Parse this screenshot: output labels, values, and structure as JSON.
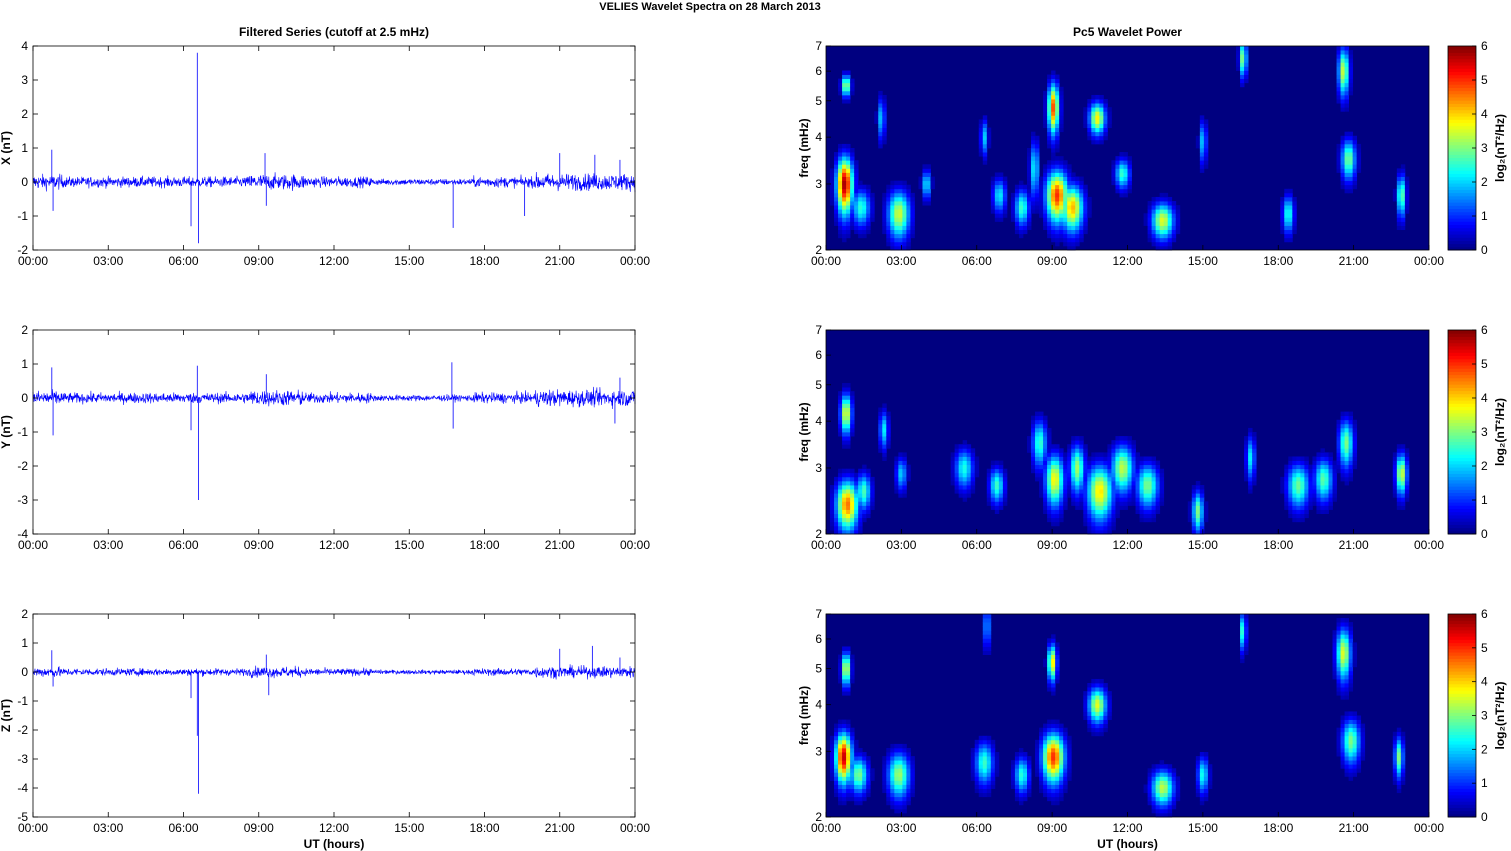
{
  "figure": {
    "suptitle": "VELIES Wavelet Spectra on 28 March     2013",
    "left_title": "Filtered Series (cutoff at 2.5 mHz)",
    "right_title": "Pc5 Wavelet Power",
    "xlabel": "UT (hours)",
    "colorbar_label": "log₂(nT²/Hz)"
  },
  "chart_data": [
    {
      "type": "line",
      "title": "Filtered Series (cutoff at 2.5 mHz)",
      "ylabel": "X (nT)",
      "xlabel": "",
      "x_ticks": [
        "00:00",
        "03:00",
        "06:00",
        "09:00",
        "12:00",
        "15:00",
        "18:00",
        "21:00",
        "00:00"
      ],
      "xlim_hours": [
        0,
        24
      ],
      "ylim": [
        -2,
        4
      ],
      "y_ticks": [
        -2,
        -1,
        0,
        1,
        2,
        3,
        4
      ],
      "color": "#0000ff",
      "baseline_amplitude_nT": 0.15,
      "spikes": [
        {
          "t": 0.75,
          "y": 0.95
        },
        {
          "t": 0.8,
          "y": -0.85
        },
        {
          "t": 6.3,
          "y": -1.3
        },
        {
          "t": 6.55,
          "y": 3.8
        },
        {
          "t": 6.6,
          "y": -1.8
        },
        {
          "t": 9.25,
          "y": 0.85
        },
        {
          "t": 9.3,
          "y": -0.7
        },
        {
          "t": 16.75,
          "y": -1.35
        },
        {
          "t": 19.6,
          "y": -1.0
        },
        {
          "t": 21.0,
          "y": 0.85
        },
        {
          "t": 22.4,
          "y": 0.8
        },
        {
          "t": 23.4,
          "y": 0.65
        }
      ]
    },
    {
      "type": "line",
      "ylabel": "Y (nT)",
      "x_ticks": [
        "00:00",
        "03:00",
        "06:00",
        "09:00",
        "12:00",
        "15:00",
        "18:00",
        "21:00",
        "00:00"
      ],
      "xlim_hours": [
        0,
        24
      ],
      "ylim": [
        -4,
        2
      ],
      "y_ticks": [
        -4,
        -3,
        -2,
        -1,
        0,
        1,
        2
      ],
      "color": "#0000ff",
      "baseline_amplitude_nT": 0.15,
      "spikes": [
        {
          "t": 0.75,
          "y": 0.9
        },
        {
          "t": 0.8,
          "y": -1.1
        },
        {
          "t": 6.3,
          "y": -0.95
        },
        {
          "t": 6.55,
          "y": 0.95
        },
        {
          "t": 6.6,
          "y": -3.0
        },
        {
          "t": 9.3,
          "y": 0.7
        },
        {
          "t": 16.7,
          "y": 1.05
        },
        {
          "t": 16.75,
          "y": -0.9
        },
        {
          "t": 23.4,
          "y": 0.6
        },
        {
          "t": 23.2,
          "y": -0.75
        }
      ]
    },
    {
      "type": "line",
      "ylabel": "Z (nT)",
      "xlabel": "UT (hours)",
      "x_ticks": [
        "00:00",
        "03:00",
        "06:00",
        "09:00",
        "12:00",
        "15:00",
        "18:00",
        "21:00",
        "00:00"
      ],
      "xlim_hours": [
        0,
        24
      ],
      "ylim": [
        -5,
        2
      ],
      "y_ticks": [
        -5,
        -4,
        -3,
        -2,
        -1,
        0,
        1,
        2
      ],
      "color": "#0000ff",
      "baseline_amplitude_nT": 0.12,
      "spikes": [
        {
          "t": 0.75,
          "y": 0.75
        },
        {
          "t": 0.8,
          "y": -0.5
        },
        {
          "t": 6.3,
          "y": -0.9
        },
        {
          "t": 6.55,
          "y": -2.2
        },
        {
          "t": 6.6,
          "y": -4.2
        },
        {
          "t": 9.3,
          "y": 0.6
        },
        {
          "t": 9.4,
          "y": -0.8
        },
        {
          "t": 21.0,
          "y": 0.8
        },
        {
          "t": 22.3,
          "y": 0.9
        },
        {
          "t": 23.4,
          "y": 0.5
        }
      ]
    },
    {
      "type": "heatmap",
      "title": "Pc5 Wavelet Power",
      "ylabel": "freq (mHz)",
      "xlabel": "",
      "x_ticks": [
        "00:00",
        "03:00",
        "06:00",
        "09:00",
        "12:00",
        "15:00",
        "18:00",
        "21:00",
        "00:00"
      ],
      "xlim_hours": [
        0,
        24
      ],
      "ylim_mHz": [
        2,
        7
      ],
      "y_scale": "log",
      "y_ticks": [
        2,
        3,
        4,
        5,
        6,
        7
      ],
      "colorbar": {
        "label": "log₂(nT²/Hz)",
        "range": [
          0,
          6
        ],
        "ticks": [
          0,
          1,
          2,
          3,
          4,
          5,
          6
        ],
        "colormap": "jet"
      },
      "blobs": [
        {
          "t": 0.75,
          "f": 3.0,
          "p": 5.8,
          "wt": 0.22,
          "wf": 0.35
        },
        {
          "t": 0.8,
          "f": 5.5,
          "p": 3.5,
          "wt": 0.12,
          "wf": 0.25
        },
        {
          "t": 1.4,
          "f": 2.6,
          "p": 2.5,
          "wt": 0.25,
          "wf": 0.2
        },
        {
          "t": 2.2,
          "f": 4.5,
          "p": 2.0,
          "wt": 0.1,
          "wf": 0.4
        },
        {
          "t": 2.9,
          "f": 2.5,
          "p": 3.5,
          "wt": 0.3,
          "wf": 0.25
        },
        {
          "t": 4.0,
          "f": 3.0,
          "p": 2.3,
          "wt": 0.12,
          "wf": 0.18
        },
        {
          "t": 6.3,
          "f": 4.0,
          "p": 2.0,
          "wt": 0.1,
          "wf": 0.3
        },
        {
          "t": 6.9,
          "f": 2.8,
          "p": 2.2,
          "wt": 0.18,
          "wf": 0.2
        },
        {
          "t": 7.8,
          "f": 2.6,
          "p": 2.6,
          "wt": 0.2,
          "wf": 0.2
        },
        {
          "t": 8.3,
          "f": 3.3,
          "p": 2.3,
          "wt": 0.12,
          "wf": 0.4
        },
        {
          "t": 9.05,
          "f": 4.8,
          "p": 4.8,
          "wt": 0.15,
          "wf": 0.5
        },
        {
          "t": 9.2,
          "f": 2.8,
          "p": 5.0,
          "wt": 0.3,
          "wf": 0.3
        },
        {
          "t": 9.8,
          "f": 2.6,
          "p": 4.2,
          "wt": 0.3,
          "wf": 0.25
        },
        {
          "t": 10.8,
          "f": 4.5,
          "p": 3.8,
          "wt": 0.22,
          "wf": 0.3
        },
        {
          "t": 11.8,
          "f": 3.2,
          "p": 2.6,
          "wt": 0.2,
          "wf": 0.2
        },
        {
          "t": 13.4,
          "f": 2.4,
          "p": 3.6,
          "wt": 0.3,
          "wf": 0.18
        },
        {
          "t": 15.0,
          "f": 3.9,
          "p": 2.0,
          "wt": 0.1,
          "wf": 0.35
        },
        {
          "t": 16.6,
          "f": 6.5,
          "p": 3.2,
          "wt": 0.1,
          "wf": 0.5
        },
        {
          "t": 18.4,
          "f": 2.5,
          "p": 2.5,
          "wt": 0.15,
          "wf": 0.2
        },
        {
          "t": 20.6,
          "f": 6.0,
          "p": 3.5,
          "wt": 0.15,
          "wf": 0.6
        },
        {
          "t": 20.8,
          "f": 3.5,
          "p": 3.0,
          "wt": 0.2,
          "wf": 0.3
        },
        {
          "t": 22.9,
          "f": 2.8,
          "p": 3.0,
          "wt": 0.12,
          "wf": 0.25
        }
      ]
    },
    {
      "type": "heatmap",
      "ylabel": "freq (mHz)",
      "x_ticks": [
        "00:00",
        "03:00",
        "06:00",
        "09:00",
        "12:00",
        "15:00",
        "18:00",
        "21:00",
        "00:00"
      ],
      "xlim_hours": [
        0,
        24
      ],
      "ylim_mHz": [
        2,
        7
      ],
      "y_scale": "log",
      "y_ticks": [
        2,
        3,
        4,
        5,
        6,
        7
      ],
      "colorbar": {
        "label": "log₂(nT²/Hz)",
        "range": [
          0,
          6
        ],
        "ticks": [
          0,
          1,
          2,
          3,
          4,
          5,
          6
        ],
        "colormap": "jet"
      },
      "blobs": [
        {
          "t": 0.85,
          "f": 2.4,
          "p": 4.6,
          "wt": 0.3,
          "wf": 0.25
        },
        {
          "t": 0.8,
          "f": 4.2,
          "p": 3.8,
          "wt": 0.15,
          "wf": 0.35
        },
        {
          "t": 1.5,
          "f": 2.6,
          "p": 2.7,
          "wt": 0.2,
          "wf": 0.2
        },
        {
          "t": 2.3,
          "f": 3.8,
          "p": 2.2,
          "wt": 0.12,
          "wf": 0.3
        },
        {
          "t": 3.0,
          "f": 2.9,
          "p": 2.0,
          "wt": 0.15,
          "wf": 0.2
        },
        {
          "t": 5.5,
          "f": 3.0,
          "p": 2.4,
          "wt": 0.25,
          "wf": 0.25
        },
        {
          "t": 6.8,
          "f": 2.7,
          "p": 2.6,
          "wt": 0.2,
          "wf": 0.2
        },
        {
          "t": 8.5,
          "f": 3.5,
          "p": 2.6,
          "wt": 0.2,
          "wf": 0.35
        },
        {
          "t": 9.1,
          "f": 2.8,
          "p": 3.8,
          "wt": 0.25,
          "wf": 0.3
        },
        {
          "t": 10.0,
          "f": 3.0,
          "p": 3.2,
          "wt": 0.2,
          "wf": 0.3
        },
        {
          "t": 10.9,
          "f": 2.6,
          "p": 3.9,
          "wt": 0.35,
          "wf": 0.3
        },
        {
          "t": 11.8,
          "f": 3.0,
          "p": 3.4,
          "wt": 0.3,
          "wf": 0.3
        },
        {
          "t": 12.8,
          "f": 2.7,
          "p": 3.0,
          "wt": 0.3,
          "wf": 0.25
        },
        {
          "t": 14.8,
          "f": 2.3,
          "p": 3.0,
          "wt": 0.15,
          "wf": 0.2
        },
        {
          "t": 16.9,
          "f": 3.2,
          "p": 2.2,
          "wt": 0.12,
          "wf": 0.3
        },
        {
          "t": 18.8,
          "f": 2.7,
          "p": 2.9,
          "wt": 0.3,
          "wf": 0.25
        },
        {
          "t": 19.8,
          "f": 2.8,
          "p": 2.8,
          "wt": 0.25,
          "wf": 0.25
        },
        {
          "t": 20.7,
          "f": 3.5,
          "p": 3.0,
          "wt": 0.2,
          "wf": 0.35
        },
        {
          "t": 22.9,
          "f": 2.9,
          "p": 3.6,
          "wt": 0.15,
          "wf": 0.25
        }
      ]
    },
    {
      "type": "heatmap",
      "ylabel": "freq (mHz)",
      "xlabel": "UT (hours)",
      "x_ticks": [
        "00:00",
        "03:00",
        "06:00",
        "09:00",
        "12:00",
        "15:00",
        "18:00",
        "21:00",
        "00:00"
      ],
      "xlim_hours": [
        0,
        24
      ],
      "ylim_mHz": [
        2,
        7
      ],
      "y_scale": "log",
      "y_ticks": [
        2,
        3,
        4,
        5,
        6,
        7
      ],
      "colorbar": {
        "label": "log₂(nT²/Hz)",
        "range": [
          0,
          6
        ],
        "ticks": [
          0,
          1,
          2,
          3,
          4,
          5,
          6
        ],
        "colormap": "jet"
      },
      "blobs": [
        {
          "t": 0.7,
          "f": 2.9,
          "p": 5.6,
          "wt": 0.22,
          "wf": 0.3
        },
        {
          "t": 0.8,
          "f": 5.0,
          "p": 3.8,
          "wt": 0.12,
          "wf": 0.35
        },
        {
          "t": 1.3,
          "f": 2.6,
          "p": 3.0,
          "wt": 0.25,
          "wf": 0.2
        },
        {
          "t": 2.9,
          "f": 2.6,
          "p": 3.2,
          "wt": 0.3,
          "wf": 0.25
        },
        {
          "t": 6.4,
          "f": 6.5,
          "p": 3.2,
          "wt": 0.06,
          "wf": 0.6
        },
        {
          "t": 6.3,
          "f": 2.8,
          "p": 2.6,
          "wt": 0.25,
          "wf": 0.25
        },
        {
          "t": 7.8,
          "f": 2.6,
          "p": 2.5,
          "wt": 0.2,
          "wf": 0.2
        },
        {
          "t": 9.05,
          "f": 2.9,
          "p": 5.0,
          "wt": 0.3,
          "wf": 0.3
        },
        {
          "t": 9.0,
          "f": 5.2,
          "p": 4.0,
          "wt": 0.12,
          "wf": 0.4
        },
        {
          "t": 10.8,
          "f": 4.0,
          "p": 3.6,
          "wt": 0.25,
          "wf": 0.3
        },
        {
          "t": 13.4,
          "f": 2.4,
          "p": 3.4,
          "wt": 0.3,
          "wf": 0.18
        },
        {
          "t": 15.0,
          "f": 2.6,
          "p": 2.4,
          "wt": 0.15,
          "wf": 0.2
        },
        {
          "t": 16.6,
          "f": 6.3,
          "p": 2.8,
          "wt": 0.08,
          "wf": 0.5
        },
        {
          "t": 20.6,
          "f": 5.5,
          "p": 3.6,
          "wt": 0.2,
          "wf": 0.6
        },
        {
          "t": 20.9,
          "f": 3.2,
          "p": 3.0,
          "wt": 0.25,
          "wf": 0.3
        },
        {
          "t": 22.8,
          "f": 2.9,
          "p": 3.0,
          "wt": 0.12,
          "wf": 0.25
        }
      ]
    }
  ]
}
